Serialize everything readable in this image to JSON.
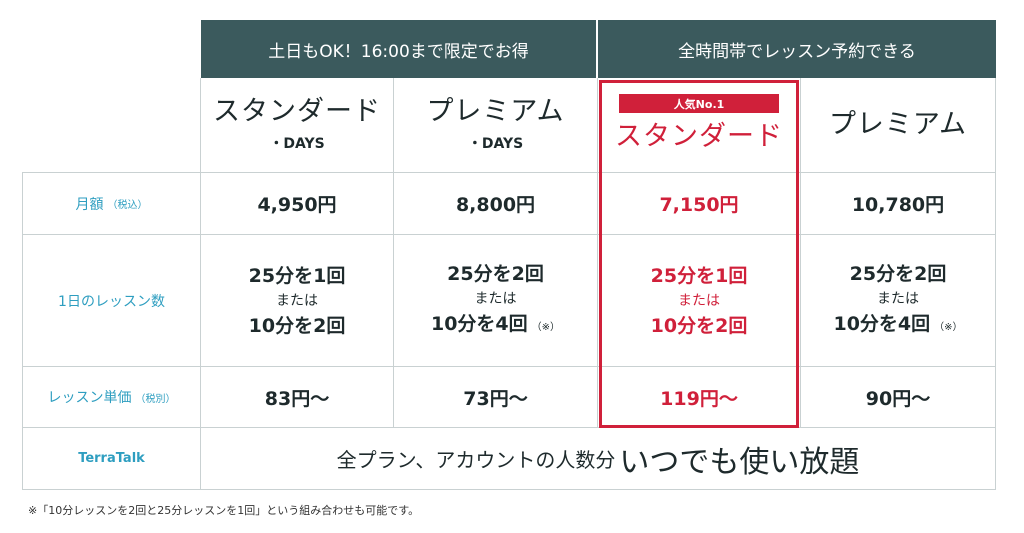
{
  "headers": {
    "group1": "土日もOK！16:00まで限定でお得",
    "group2": "全時間帯でレッスン予約できる"
  },
  "badge": "人気No.1",
  "plans": [
    {
      "name": "スタンダード",
      "sub": "・DAYS"
    },
    {
      "name": "プレミアム",
      "sub": "・DAYS"
    },
    {
      "name": "スタンダード",
      "sub": ""
    },
    {
      "name": "プレミアム",
      "sub": ""
    }
  ],
  "rows": {
    "monthly": {
      "label": "月額",
      "label_note": "（税込）",
      "values": [
        "4,950円",
        "8,800円",
        "7,150円",
        "10,780円"
      ]
    },
    "lessons": {
      "label": "1日のレッスン数",
      "items": [
        {
          "line1": "25分を1回",
          "or": "または",
          "line2": "10分を2回",
          "note": ""
        },
        {
          "line1": "25分を2回",
          "or": "または",
          "line2": "10分を4回",
          "note": "（※）"
        },
        {
          "line1": "25分を1回",
          "or": "または",
          "line2": "10分を2回",
          "note": ""
        },
        {
          "line1": "25分を2回",
          "or": "または",
          "line2": "10分を4回",
          "note": "（※）"
        }
      ]
    },
    "unit_price": {
      "label": "レッスン単価",
      "label_note": "（税別）",
      "values": [
        "83円〜",
        "73円〜",
        "119円〜",
        "90円〜"
      ]
    },
    "terratalk": {
      "label": "TerraTalk",
      "text": "全プラン、アカウントの人数分",
      "text_big": "いつでも使い放題"
    }
  },
  "footnote": "※「10分レッスンを2回と25分レッスンを1回」という組み合わせも可能です。",
  "colors": {
    "header_bg": "#3b5a5d",
    "highlight": "#d0203a",
    "label_blue": "#2e9ec0",
    "grid": "#c9d1d2"
  }
}
